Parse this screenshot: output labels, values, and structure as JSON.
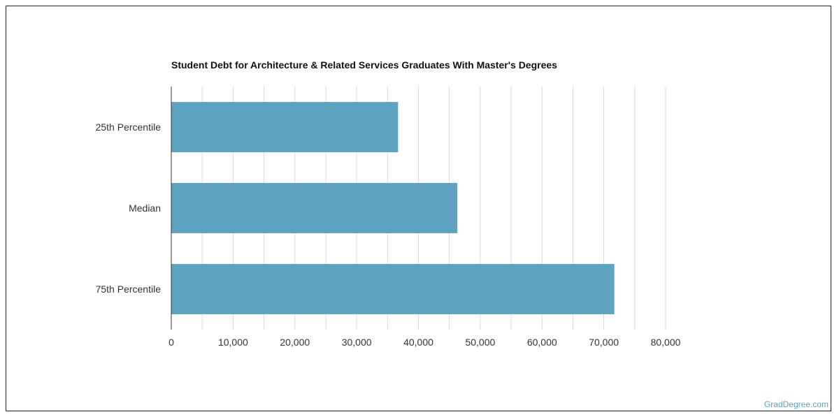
{
  "chart_data": {
    "type": "bar",
    "orientation": "horizontal",
    "title": "Student Debt for Architecture & Related Services Graduates With Master's Degrees",
    "categories": [
      "25th Percentile",
      "Median",
      "75th Percentile"
    ],
    "values": [
      36700,
      46300,
      71700
    ],
    "xlim": [
      0,
      80000
    ],
    "xticks": [
      0,
      10000,
      20000,
      30000,
      40000,
      50000,
      60000,
      70000,
      80000
    ],
    "xtick_labels": [
      "0",
      "10,000",
      "20,000",
      "30,000",
      "40,000",
      "50,000",
      "60,000",
      "70,000",
      "80,000"
    ],
    "grid": true,
    "bar_color": "#5ea3bf",
    "grid_color": "#d9d9d9"
  },
  "credit": "GradDegree.com"
}
